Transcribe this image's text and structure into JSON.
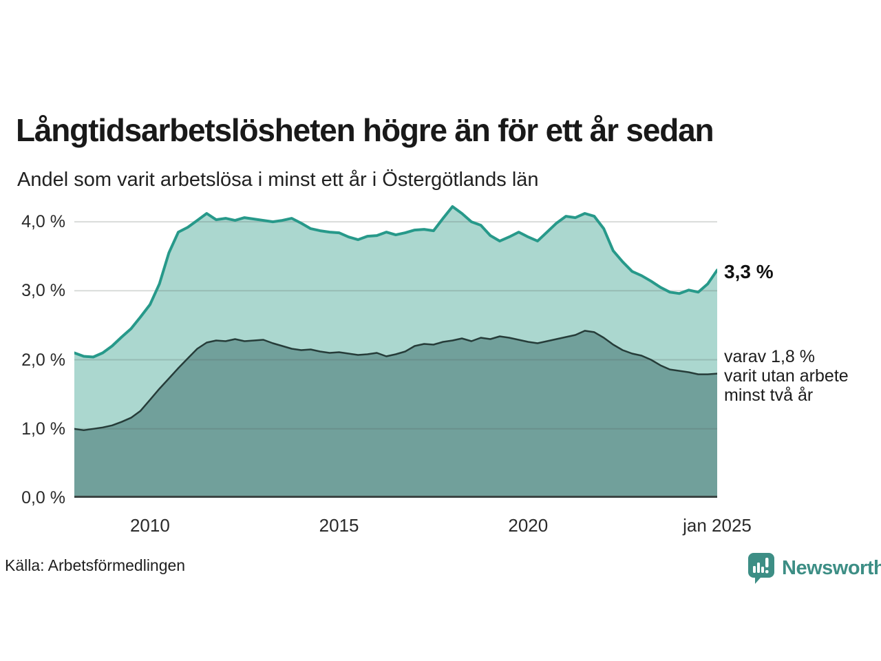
{
  "header": {
    "title": "Långtidsarbetslösheten högre än för ett år sedan",
    "subtitle": "Andel som varit arbetslösa i minst ett år i Östergötlands län"
  },
  "annotations": {
    "primary_value": "3,3 %",
    "secondary_lines": [
      "varav 1,8 %",
      "varit utan arbete",
      "minst två år"
    ]
  },
  "footer": {
    "source": "Källa: Arbetsförmedlingen",
    "brand_name": "Newsworthy"
  },
  "colors": {
    "series1_line": "#27998a",
    "series1_fill": "#abd7cf",
    "series2_line": "#263c39",
    "series2_fill": "#71a09b",
    "baseline": "#3b4543",
    "grid": "rgba(80,90,88,0.22)",
    "brand_teal": "#3d8e85"
  },
  "chart_data": {
    "type": "area",
    "title": "Långtidsarbetslösheten högre än för ett år sedan",
    "subtitle": "Andel som varit arbetslösa i minst ett år i Östergötlands län",
    "xlabel": "",
    "ylabel": "",
    "y_unit": "%",
    "xlim": [
      2008,
      2025
    ],
    "ylim": [
      0,
      4.32
    ],
    "grid": "horizontal",
    "legend_position": "right-edge-annotations",
    "x": [
      2008,
      2008.25,
      2008.5,
      2008.75,
      2009,
      2009.25,
      2009.5,
      2009.75,
      2010,
      2010.25,
      2010.5,
      2010.75,
      2011,
      2011.25,
      2011.5,
      2011.75,
      2012,
      2012.25,
      2012.5,
      2012.75,
      2013,
      2013.25,
      2013.5,
      2013.75,
      2014,
      2014.25,
      2014.5,
      2014.75,
      2015,
      2015.25,
      2015.5,
      2015.75,
      2016,
      2016.25,
      2016.5,
      2016.75,
      2017,
      2017.25,
      2017.5,
      2017.75,
      2018,
      2018.25,
      2018.5,
      2018.75,
      2019,
      2019.25,
      2019.5,
      2019.75,
      2020,
      2020.25,
      2020.5,
      2020.75,
      2021,
      2021.25,
      2021.5,
      2021.75,
      2022,
      2022.25,
      2022.5,
      2022.75,
      2023,
      2023.25,
      2023.5,
      2023.75,
      2024,
      2024.25,
      2024.5,
      2024.75,
      2025
    ],
    "series": [
      {
        "name": "Andel arbetslösa minst ett år",
        "end_value": 3.3,
        "end_label": "3,3 %",
        "color": "#27998a",
        "fill": "#abd7cf",
        "stroke_width": 4,
        "values": [
          2.1,
          2.05,
          2.04,
          2.1,
          2.2,
          2.33,
          2.45,
          2.62,
          2.8,
          3.1,
          3.55,
          3.85,
          3.92,
          4.02,
          4.12,
          4.03,
          4.05,
          4.02,
          4.06,
          4.04,
          4.02,
          4.0,
          4.02,
          4.05,
          3.98,
          3.9,
          3.87,
          3.85,
          3.84,
          3.78,
          3.74,
          3.79,
          3.8,
          3.85,
          3.81,
          3.84,
          3.88,
          3.89,
          3.87,
          4.05,
          4.22,
          4.12,
          4.0,
          3.95,
          3.8,
          3.72,
          3.78,
          3.85,
          3.78,
          3.72,
          3.85,
          3.98,
          4.08,
          4.06,
          4.12,
          4.08,
          3.9,
          3.58,
          3.42,
          3.28,
          3.22,
          3.14,
          3.05,
          2.98,
          2.96,
          3.01,
          2.98,
          3.1,
          3.3
        ]
      },
      {
        "name": "Andel arbetslösa minst två år",
        "end_value": 1.8,
        "end_label": "varav 1,8 % varit utan arbete minst två år",
        "color": "#263c39",
        "fill": "#71a09b",
        "stroke_width": 2.5,
        "values": [
          1.0,
          0.98,
          1.0,
          1.02,
          1.05,
          1.1,
          1.16,
          1.26,
          1.42,
          1.58,
          1.73,
          1.88,
          2.02,
          2.16,
          2.25,
          2.28,
          2.27,
          2.3,
          2.27,
          2.28,
          2.29,
          2.24,
          2.2,
          2.16,
          2.14,
          2.15,
          2.12,
          2.1,
          2.11,
          2.09,
          2.07,
          2.08,
          2.1,
          2.05,
          2.08,
          2.12,
          2.2,
          2.23,
          2.22,
          2.26,
          2.28,
          2.31,
          2.27,
          2.32,
          2.3,
          2.34,
          2.32,
          2.29,
          2.26,
          2.24,
          2.27,
          2.3,
          2.33,
          2.36,
          2.42,
          2.4,
          2.32,
          2.22,
          2.14,
          2.09,
          2.06,
          2.0,
          1.92,
          1.86,
          1.84,
          1.82,
          1.79,
          1.79,
          1.8
        ]
      }
    ],
    "x_ticks": [
      {
        "label": "2010",
        "year": 2010
      },
      {
        "label": "2015",
        "year": 2015
      },
      {
        "label": "2020",
        "year": 2020
      },
      {
        "label": "jan 2025",
        "year": 2025
      }
    ],
    "y_ticks": [
      {
        "label": "0,0 %",
        "value": 0
      },
      {
        "label": "1,0 %",
        "value": 1
      },
      {
        "label": "2,0 %",
        "value": 2
      },
      {
        "label": "3,0 %",
        "value": 3
      },
      {
        "label": "4,0 %",
        "value": 4
      }
    ]
  }
}
